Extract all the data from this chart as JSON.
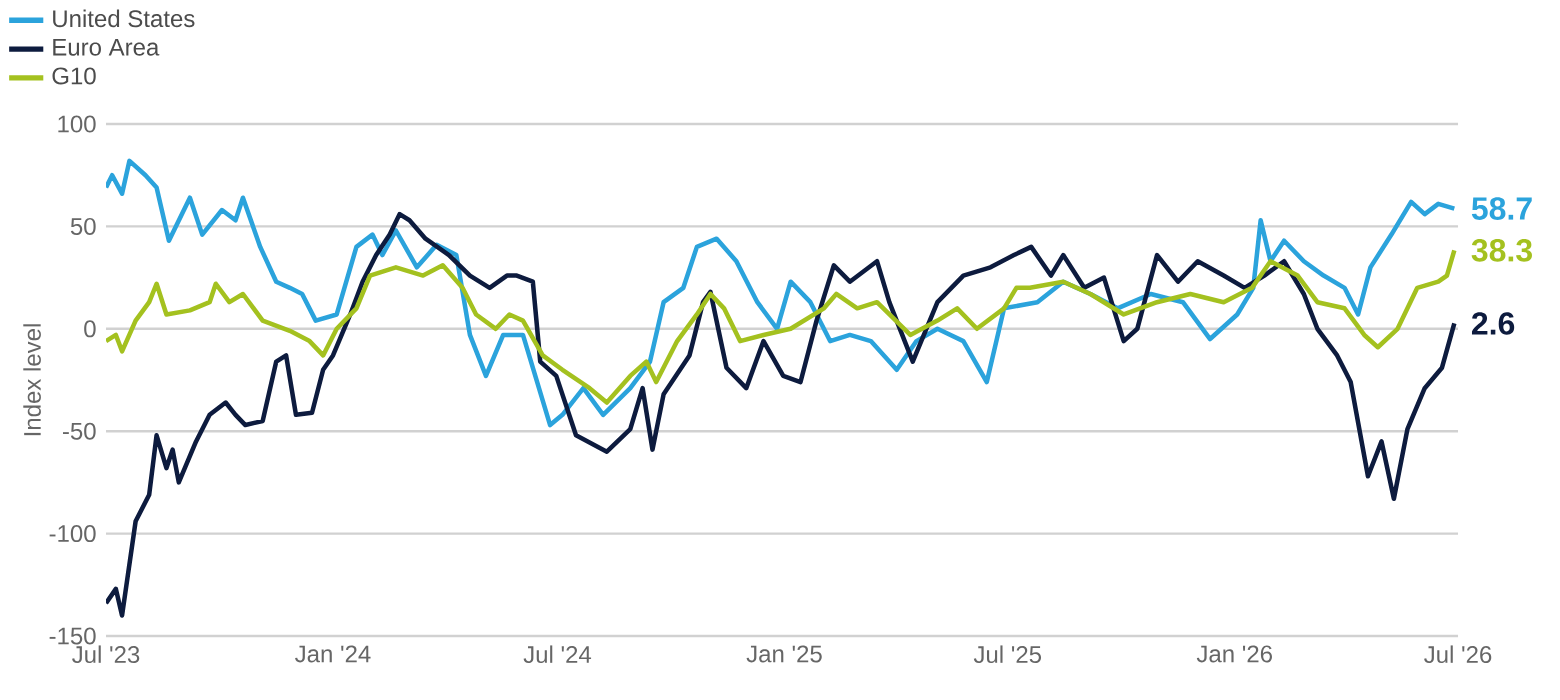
{
  "chart_data": {
    "type": "line",
    "ylabel": "Index level",
    "legend": "top left",
    "grid": "y",
    "line_style": "solid",
    "marker": "none",
    "xlim": [
      "2023-07-01",
      "2026-07-01"
    ],
    "ylim": [
      -150,
      100
    ],
    "yticks": [
      -150,
      -100,
      -50,
      0,
      50,
      100
    ],
    "xticks": [
      {
        "value": "2023-07-01",
        "label": "Jul '23"
      },
      {
        "value": "2024-01-01",
        "label": "Jan '24"
      },
      {
        "value": "2024-07-01",
        "label": "Jul '24"
      },
      {
        "value": "2025-01-01",
        "label": "Jan '25"
      },
      {
        "value": "2025-07-01",
        "label": "Jul '25"
      },
      {
        "value": "2026-01-01",
        "label": "Jan '26"
      },
      {
        "value": "2026-07-01",
        "label": "Jul '26"
      }
    ],
    "series": [
      {
        "name": "United States",
        "color": "#2ba3dc",
        "x": [
          "2023-07-01",
          "2023-07-06",
          "2023-07-14",
          "2023-07-20",
          "2023-08-02",
          "2023-08-11",
          "2023-08-21",
          "2023-09-07",
          "2023-09-17",
          "2023-10-03",
          "2023-10-14",
          "2023-10-20",
          "2023-11-03",
          "2023-11-16",
          "2023-11-27",
          "2023-12-07",
          "2023-12-18",
          "2024-01-04",
          "2024-01-20",
          "2024-02-02",
          "2024-02-10",
          "2024-02-21",
          "2024-03-09",
          "2024-03-25",
          "2024-04-10",
          "2024-04-21",
          "2024-05-04",
          "2024-05-18",
          "2024-06-03",
          "2024-06-25",
          "2024-07-05",
          "2024-07-22",
          "2024-08-07",
          "2024-08-29",
          "2024-09-14",
          "2024-09-25",
          "2024-10-11",
          "2024-10-22",
          "2024-11-07",
          "2024-11-23",
          "2024-12-10",
          "2024-12-26",
          "2025-01-06",
          "2025-01-22",
          "2025-02-07",
          "2025-02-23",
          "2025-03-12",
          "2025-04-02",
          "2025-04-18",
          "2025-05-05",
          "2025-05-26",
          "2025-06-14",
          "2025-06-28",
          "2025-07-25",
          "2025-08-15",
          "2025-09-06",
          "2025-09-28",
          "2025-10-25",
          "2025-11-20",
          "2025-12-12",
          "2026-01-03",
          "2026-01-16",
          "2026-01-22",
          "2026-01-30",
          "2026-02-10",
          "2026-02-26",
          "2026-03-14",
          "2026-03-31",
          "2026-04-11",
          "2026-04-21",
          "2026-05-08",
          "2026-05-24",
          "2026-06-04",
          "2026-06-15",
          "2026-06-28"
        ],
        "values": [
          69,
          75,
          66,
          82,
          75,
          69,
          43,
          64,
          46,
          58,
          53,
          64,
          40,
          23,
          20,
          17,
          4,
          7,
          40,
          46,
          36,
          48,
          30,
          41,
          36,
          -3,
          -23,
          -3,
          -3,
          -47,
          -42,
          -29,
          -42,
          -29,
          -16,
          13,
          20,
          40,
          44,
          33,
          13,
          0,
          23,
          13,
          -6,
          -3,
          -6,
          -20,
          -6,
          0,
          -6,
          -26,
          10,
          13,
          23,
          17,
          10,
          17,
          13,
          -5,
          7,
          20,
          53,
          33,
          43,
          33,
          26,
          20,
          7,
          30,
          46,
          62,
          56,
          61,
          58.7
        ],
        "value_labels": [
          null,
          null,
          null,
          null,
          null,
          null,
          null,
          null,
          null,
          null,
          null,
          null,
          null,
          null,
          null,
          null,
          null,
          null,
          null,
          null,
          null,
          null,
          null,
          null,
          null,
          null,
          null,
          null,
          null,
          null,
          null,
          null,
          null,
          null,
          null,
          null,
          null,
          null,
          null,
          null,
          null,
          null,
          null,
          null,
          null,
          null,
          null,
          null,
          null,
          null,
          null,
          null,
          null,
          null,
          null,
          null,
          null,
          null,
          null,
          null,
          null,
          null,
          null,
          null,
          null,
          null,
          null,
          null,
          null,
          null,
          null,
          null,
          null,
          null,
          "58.7"
        ]
      },
      {
        "name": "Euro Area",
        "color": "#0d1b3e",
        "x": [
          "2023-07-01",
          "2023-07-09",
          "2023-07-14",
          "2023-07-25",
          "2023-08-05",
          "2023-08-11",
          "2023-08-19",
          "2023-08-24",
          "2023-08-29",
          "2023-09-12",
          "2023-09-23",
          "2023-10-06",
          "2023-10-14",
          "2023-10-22",
          "2023-11-05",
          "2023-11-16",
          "2023-11-24",
          "2023-12-02",
          "2023-12-15",
          "2023-12-24",
          "2024-01-01",
          "2024-01-15",
          "2024-01-25",
          "2024-02-05",
          "2024-02-16",
          "2024-02-24",
          "2024-03-03",
          "2024-03-16",
          "2024-04-04",
          "2024-04-21",
          "2024-05-07",
          "2024-05-21",
          "2024-05-29",
          "2024-06-11",
          "2024-06-17",
          "2024-06-30",
          "2024-07-16",
          "2024-08-10",
          "2024-08-29",
          "2024-09-08",
          "2024-09-16",
          "2024-09-25",
          "2024-10-16",
          "2024-10-27",
          "2024-11-02",
          "2024-11-15",
          "2024-12-01",
          "2024-12-15",
          "2024-12-31",
          "2025-01-14",
          "2025-01-27",
          "2025-02-10",
          "2025-02-23",
          "2025-03-17",
          "2025-03-27",
          "2025-04-15",
          "2025-05-05",
          "2025-05-26",
          "2025-06-17",
          "2025-07-06",
          "2025-07-20",
          "2025-08-05",
          "2025-08-15",
          "2025-09-01",
          "2025-09-17",
          "2025-10-03",
          "2025-10-14",
          "2025-10-30",
          "2025-11-16",
          "2025-12-02",
          "2025-12-23",
          "2026-01-09",
          "2026-01-25",
          "2026-02-10",
          "2026-02-26",
          "2026-03-09",
          "2026-03-25",
          "2026-04-05",
          "2026-04-19",
          "2026-04-30",
          "2026-05-10",
          "2026-05-21",
          "2026-06-04",
          "2026-06-18",
          "2026-06-28"
        ],
        "values": [
          -134,
          -127,
          -140,
          -94,
          -81,
          -52,
          -68,
          -59,
          -75,
          -55,
          -42,
          -36,
          -42,
          -47,
          -45,
          -16,
          -13,
          -42,
          -41,
          -20,
          -13,
          7,
          23,
          36,
          46,
          56,
          53,
          44,
          36,
          26,
          20,
          26,
          26,
          23,
          -16,
          -23,
          -52,
          -60,
          -49,
          -29,
          -59,
          -32,
          -13,
          13,
          18,
          -19,
          -29,
          -6,
          -23,
          -26,
          4,
          31,
          23,
          33,
          13,
          -16,
          13,
          26,
          30,
          36,
          40,
          26,
          36,
          20,
          25,
          -6,
          0,
          36,
          23,
          33,
          26,
          20,
          26,
          33,
          17,
          0,
          -13,
          -26,
          -72,
          -55,
          -83,
          -49,
          -29,
          -19,
          2.6
        ],
        "value_labels": [
          null,
          null,
          null,
          null,
          null,
          null,
          null,
          null,
          null,
          null,
          null,
          null,
          null,
          null,
          null,
          null,
          null,
          null,
          null,
          null,
          null,
          null,
          null,
          null,
          null,
          null,
          null,
          null,
          null,
          null,
          null,
          null,
          null,
          null,
          null,
          null,
          null,
          null,
          null,
          null,
          null,
          null,
          null,
          null,
          null,
          null,
          null,
          null,
          null,
          null,
          null,
          null,
          null,
          null,
          null,
          null,
          null,
          null,
          null,
          null,
          null,
          null,
          null,
          null,
          null,
          null,
          null,
          null,
          null,
          null,
          null,
          null,
          null,
          null,
          null,
          null,
          null,
          null,
          null,
          null,
          null,
          null,
          null,
          null,
          "2.6"
        ]
      },
      {
        "name": "G10",
        "color": "#a4c11f",
        "x": [
          "2023-07-01",
          "2023-07-09",
          "2023-07-14",
          "2023-07-25",
          "2023-08-05",
          "2023-08-11",
          "2023-08-19",
          "2023-09-07",
          "2023-09-23",
          "2023-09-28",
          "2023-10-09",
          "2023-10-20",
          "2023-11-05",
          "2023-11-27",
          "2023-12-13",
          "2023-12-24",
          "2024-01-04",
          "2024-01-20",
          "2024-01-31",
          "2024-02-21",
          "2024-03-14",
          "2024-03-30",
          "2024-04-15",
          "2024-04-26",
          "2024-05-12",
          "2024-05-23",
          "2024-06-03",
          "2024-06-19",
          "2024-07-05",
          "2024-07-27",
          "2024-08-10",
          "2024-08-29",
          "2024-09-11",
          "2024-09-19",
          "2024-10-06",
          "2024-10-22",
          "2024-11-02",
          "2024-11-13",
          "2024-11-26",
          "2024-12-15",
          "2025-01-06",
          "2025-02-02",
          "2025-02-12",
          "2025-03-01",
          "2025-03-17",
          "2025-04-13",
          "2025-05-05",
          "2025-05-21",
          "2025-06-06",
          "2025-06-28",
          "2025-07-08",
          "2025-07-19",
          "2025-08-15",
          "2025-09-06",
          "2025-10-03",
          "2025-10-30",
          "2025-11-26",
          "2025-12-23",
          "2026-01-15",
          "2026-01-30",
          "2026-02-21",
          "2026-03-09",
          "2026-03-31",
          "2026-04-16",
          "2026-04-27",
          "2026-05-13",
          "2026-05-29",
          "2026-06-15",
          "2026-06-22",
          "2026-06-28"
        ],
        "values": [
          -6,
          -3,
          -11,
          4,
          13,
          22,
          7,
          9,
          13,
          22,
          13,
          17,
          4,
          -1,
          -6,
          -13,
          0,
          10,
          26,
          30,
          26,
          31,
          20,
          7,
          0,
          7,
          4,
          -13,
          -20,
          -29,
          -36,
          -23,
          -16,
          -26,
          -6,
          7,
          17,
          10,
          -6,
          -3,
          0,
          10,
          17,
          10,
          13,
          -3,
          4,
          10,
          0,
          10,
          20,
          20,
          23,
          17,
          7,
          13,
          17,
          13,
          20,
          33,
          26,
          13,
          10,
          -3,
          -9,
          0,
          20,
          23,
          26,
          38.3
        ],
        "value_labels": [
          null,
          null,
          null,
          null,
          null,
          null,
          null,
          null,
          null,
          null,
          null,
          null,
          null,
          null,
          null,
          null,
          null,
          null,
          null,
          null,
          null,
          null,
          null,
          null,
          null,
          null,
          null,
          null,
          null,
          null,
          null,
          null,
          null,
          null,
          null,
          null,
          null,
          null,
          null,
          null,
          null,
          null,
          null,
          null,
          null,
          null,
          null,
          null,
          null,
          null,
          null,
          null,
          null,
          null,
          null,
          null,
          null,
          null,
          null,
          null,
          null,
          null,
          null,
          null,
          null,
          null,
          null,
          null,
          null,
          "38.3"
        ]
      }
    ]
  }
}
